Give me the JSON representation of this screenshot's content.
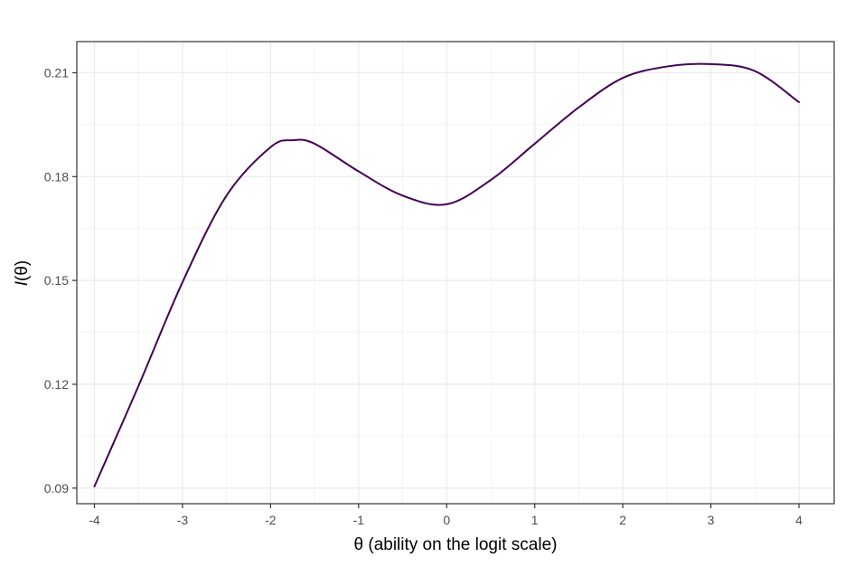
{
  "chart_data": {
    "type": "line",
    "xlabel": "θ (ability on the logit scale)",
    "ylabel_italic": "I",
    "ylabel_rest": "(θ)",
    "xlim": [
      -4.2,
      4.4
    ],
    "ylim": [
      0.0855,
      0.219
    ],
    "x_ticks": [
      -4,
      -3,
      -2,
      -1,
      0,
      1,
      2,
      3,
      4
    ],
    "x_tick_labels": [
      "-4",
      "-3",
      "-2",
      "-1",
      "0",
      "1",
      "2",
      "3",
      "4"
    ],
    "y_ticks": [
      0.09,
      0.12,
      0.15,
      0.18,
      0.21
    ],
    "y_tick_labels": [
      "0.09",
      "0.12",
      "0.15",
      "0.18",
      "0.21"
    ],
    "grid": true,
    "series": [
      {
        "color": "#440154",
        "x": [
          -4.0,
          -3.5,
          -3.0,
          -2.5,
          -2.0,
          -1.75,
          -1.5,
          -1.0,
          -0.5,
          0.0,
          0.5,
          1.0,
          1.5,
          2.0,
          2.5,
          3.0,
          3.5,
          4.0
        ],
        "y": [
          0.0905,
          0.1195,
          0.1495,
          0.1745,
          0.1885,
          0.1905,
          0.1895,
          0.1815,
          0.1745,
          0.172,
          0.179,
          0.1895,
          0.2,
          0.2085,
          0.2118,
          0.2125,
          0.2105,
          0.2015
        ]
      }
    ]
  },
  "colors": {
    "panel_border": "#333333",
    "grid_major": "#ebebeb",
    "grid_minor": "#f5f5f5",
    "line": "#440154"
  }
}
